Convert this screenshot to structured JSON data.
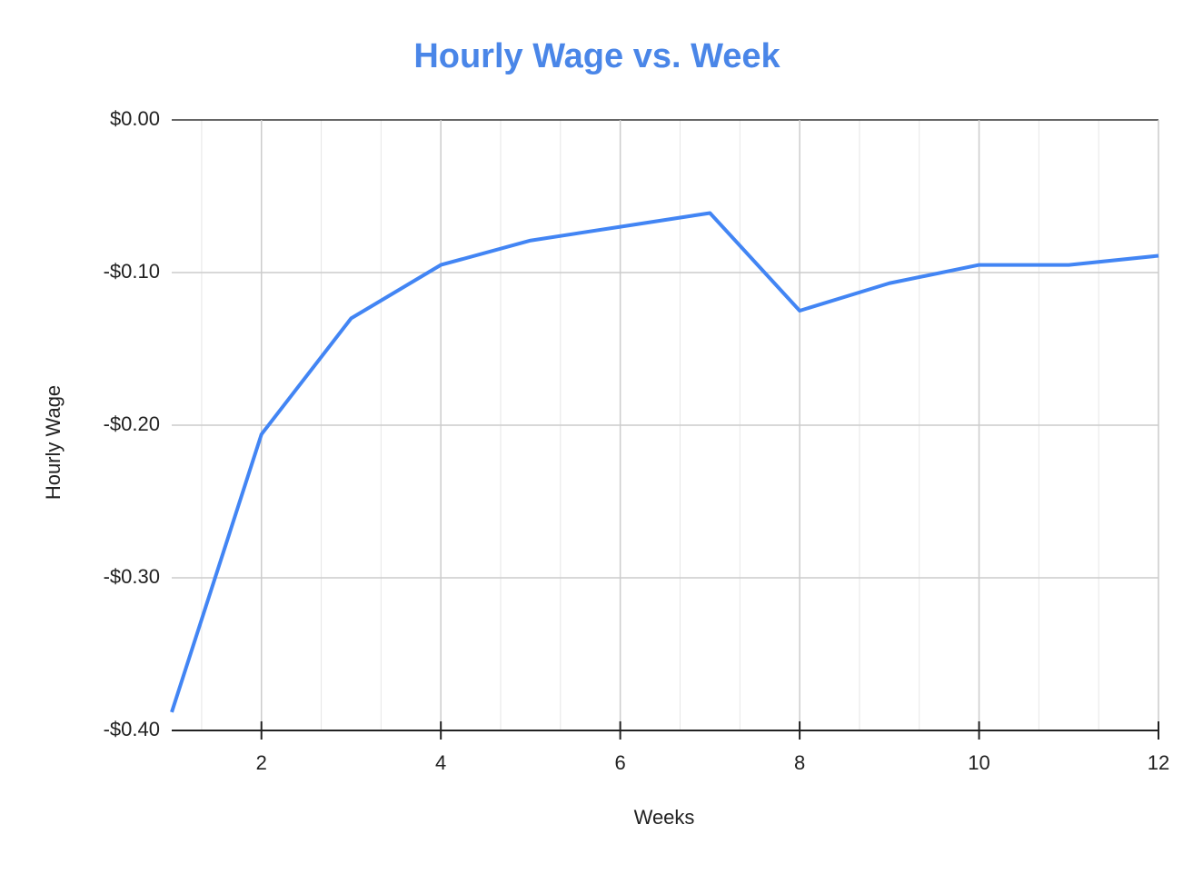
{
  "chart_data": {
    "type": "line",
    "title": "Hourly Wage vs. Week",
    "x_label": "Weeks",
    "y_label": "Hourly Wage",
    "x": [
      1,
      2,
      3,
      4,
      5,
      6,
      7,
      8,
      9,
      10,
      11,
      12
    ],
    "series": [
      {
        "name": "Hourly Wage",
        "color": "#4285f4",
        "values": [
          -0.388,
          -0.206,
          -0.13,
          -0.095,
          -0.079,
          -0.07,
          -0.061,
          -0.125,
          -0.107,
          -0.095,
          -0.095,
          -0.089
        ]
      }
    ],
    "xlim": [
      1,
      12
    ],
    "xticks": [
      2,
      4,
      6,
      8,
      10,
      12
    ],
    "ylim": [
      -0.4,
      0
    ],
    "yticks": [
      {
        "value": 0,
        "label": "$0.00"
      },
      {
        "value": -0.1,
        "label": "-$0.10"
      },
      {
        "value": -0.2,
        "label": "-$0.20"
      },
      {
        "value": -0.3,
        "label": "-$0.30"
      },
      {
        "value": -0.4,
        "label": "-$0.40"
      }
    ],
    "grid": true,
    "minor_grid_divisions": 3
  }
}
